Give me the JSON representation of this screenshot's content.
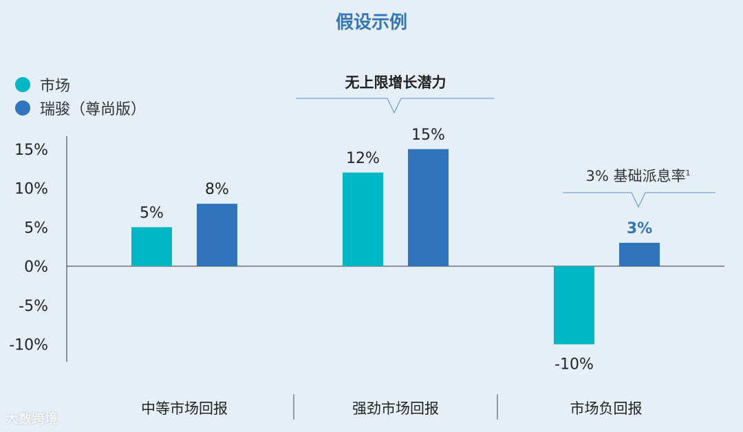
{
  "chart_data": {
    "type": "bar",
    "title": "假设示例",
    "categories": [
      "中等市场回报",
      "强劲市场回报",
      "市场负回报"
    ],
    "series": [
      {
        "name": "市场",
        "color": "#00b8c3",
        "values": [
          5,
          12,
          -10
        ],
        "labels": [
          "5%",
          "12%",
          "-10%"
        ]
      },
      {
        "name": "瑞骏（尊尚版）",
        "color": "#3074bb",
        "values": [
          8,
          15,
          3
        ],
        "labels": [
          "8%",
          "15%",
          "3%"
        ]
      }
    ],
    "yticks": [
      "15%",
      "10%",
      "5%",
      "0%",
      "-5%",
      "-10%"
    ],
    "ytick_values": [
      15,
      10,
      5,
      0,
      -5,
      -10
    ],
    "ylim": [
      -12,
      17
    ],
    "annotations": {
      "strong": "无上限增长潜力",
      "negative": "3% 基础派息率",
      "negative_sup": "1"
    },
    "highlight_color": "#3375b9"
  },
  "legend": {
    "market": "市场",
    "product": "瑞骏（尊尚版）"
  },
  "watermark": "大数跨境"
}
